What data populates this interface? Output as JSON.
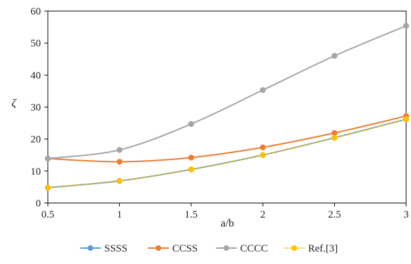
{
  "chart_data": {
    "type": "line",
    "title": "",
    "xlabel": "a/b",
    "ylabel": "ζ",
    "x": [
      0.5,
      1,
      1.5,
      2,
      2.5,
      3
    ],
    "x_tick_labels": [
      "0.5",
      "1",
      "1.5",
      "2",
      "2.5",
      "3"
    ],
    "xlim": [
      0.5,
      3
    ],
    "ylim": [
      0,
      60
    ],
    "y_ticks": [
      0,
      10,
      20,
      30,
      40,
      50,
      60
    ],
    "y_tick_labels": [
      "0",
      "10",
      "20",
      "30",
      "40",
      "50",
      "60"
    ],
    "grid": false,
    "legend_position": "bottom",
    "series": [
      {
        "name": "SSSS",
        "color": "#5b9bd5",
        "line_style": "solid",
        "values": [
          4.8,
          6.9,
          10.5,
          15.0,
          20.4,
          26.2
        ]
      },
      {
        "name": "CCSS",
        "color": "#ed7d31",
        "line_style": "solid",
        "values": [
          13.9,
          12.9,
          14.2,
          17.4,
          21.9,
          27.2
        ]
      },
      {
        "name": "CCCC",
        "color": "#a5a5a5",
        "line_style": "solid",
        "values": [
          13.9,
          16.6,
          24.7,
          35.3,
          46.0,
          55.4
        ]
      },
      {
        "name": "Ref.[3]",
        "color": "#ffc000",
        "line_style": "dotted",
        "values": [
          4.8,
          6.9,
          10.5,
          15.0,
          20.4,
          26.2
        ]
      }
    ]
  }
}
